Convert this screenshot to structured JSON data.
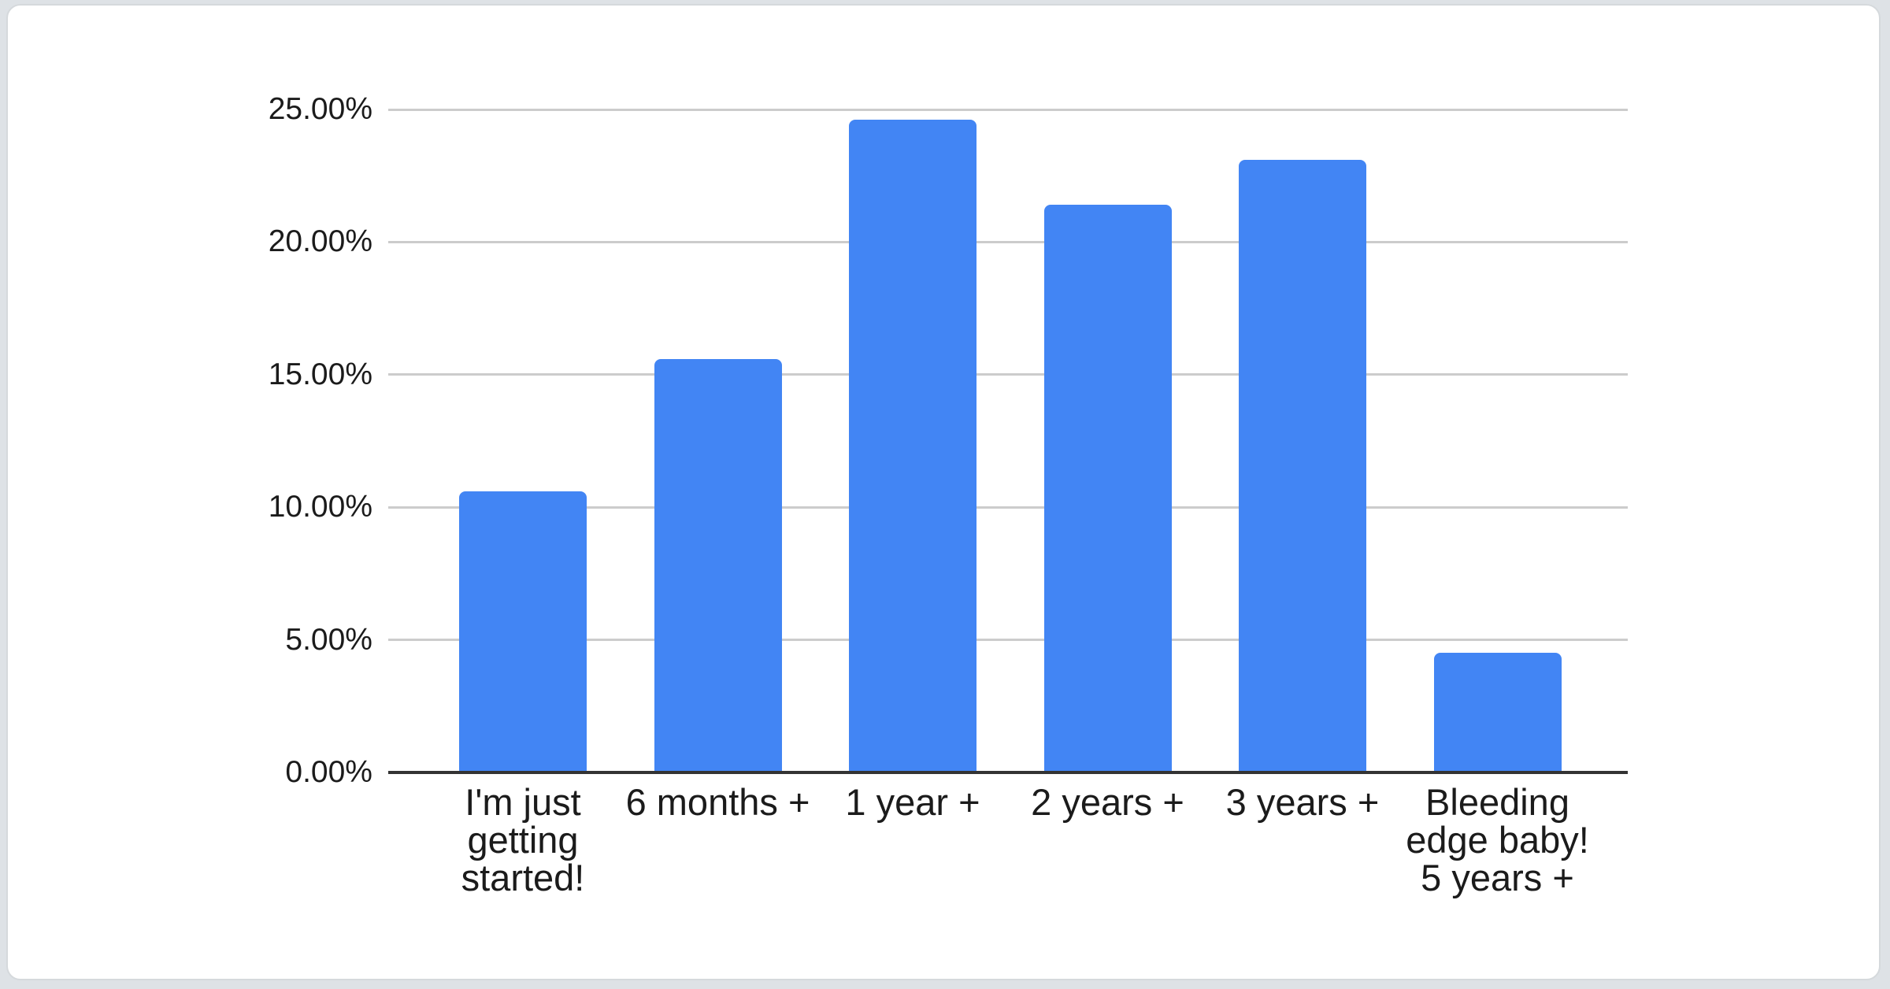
{
  "chart_data": {
    "type": "bar",
    "title": "",
    "xlabel": "",
    "ylabel": "",
    "categories": [
      "I'm just getting started!",
      "6 months +",
      "1 year +",
      "2 years +",
      "3 years +",
      "Bleeding edge baby! 5 years +"
    ],
    "values": [
      10.6,
      15.6,
      24.6,
      21.4,
      23.1,
      4.5
    ],
    "ylim": [
      0,
      25
    ],
    "ytick_step": 5,
    "ytick_labels": [
      "0.00%",
      "5.00%",
      "10.00%",
      "15.00%",
      "20.00%",
      "25.00%"
    ],
    "grid": true,
    "legend": "none"
  },
  "colors": {
    "bar": "#4285f4",
    "gridline": "#cccccc",
    "axis": "#333333",
    "label": "#1b1b1b",
    "card_bg": "#ffffff",
    "card_border": "#d5d9dc",
    "page_bg": "#dee2e6"
  }
}
